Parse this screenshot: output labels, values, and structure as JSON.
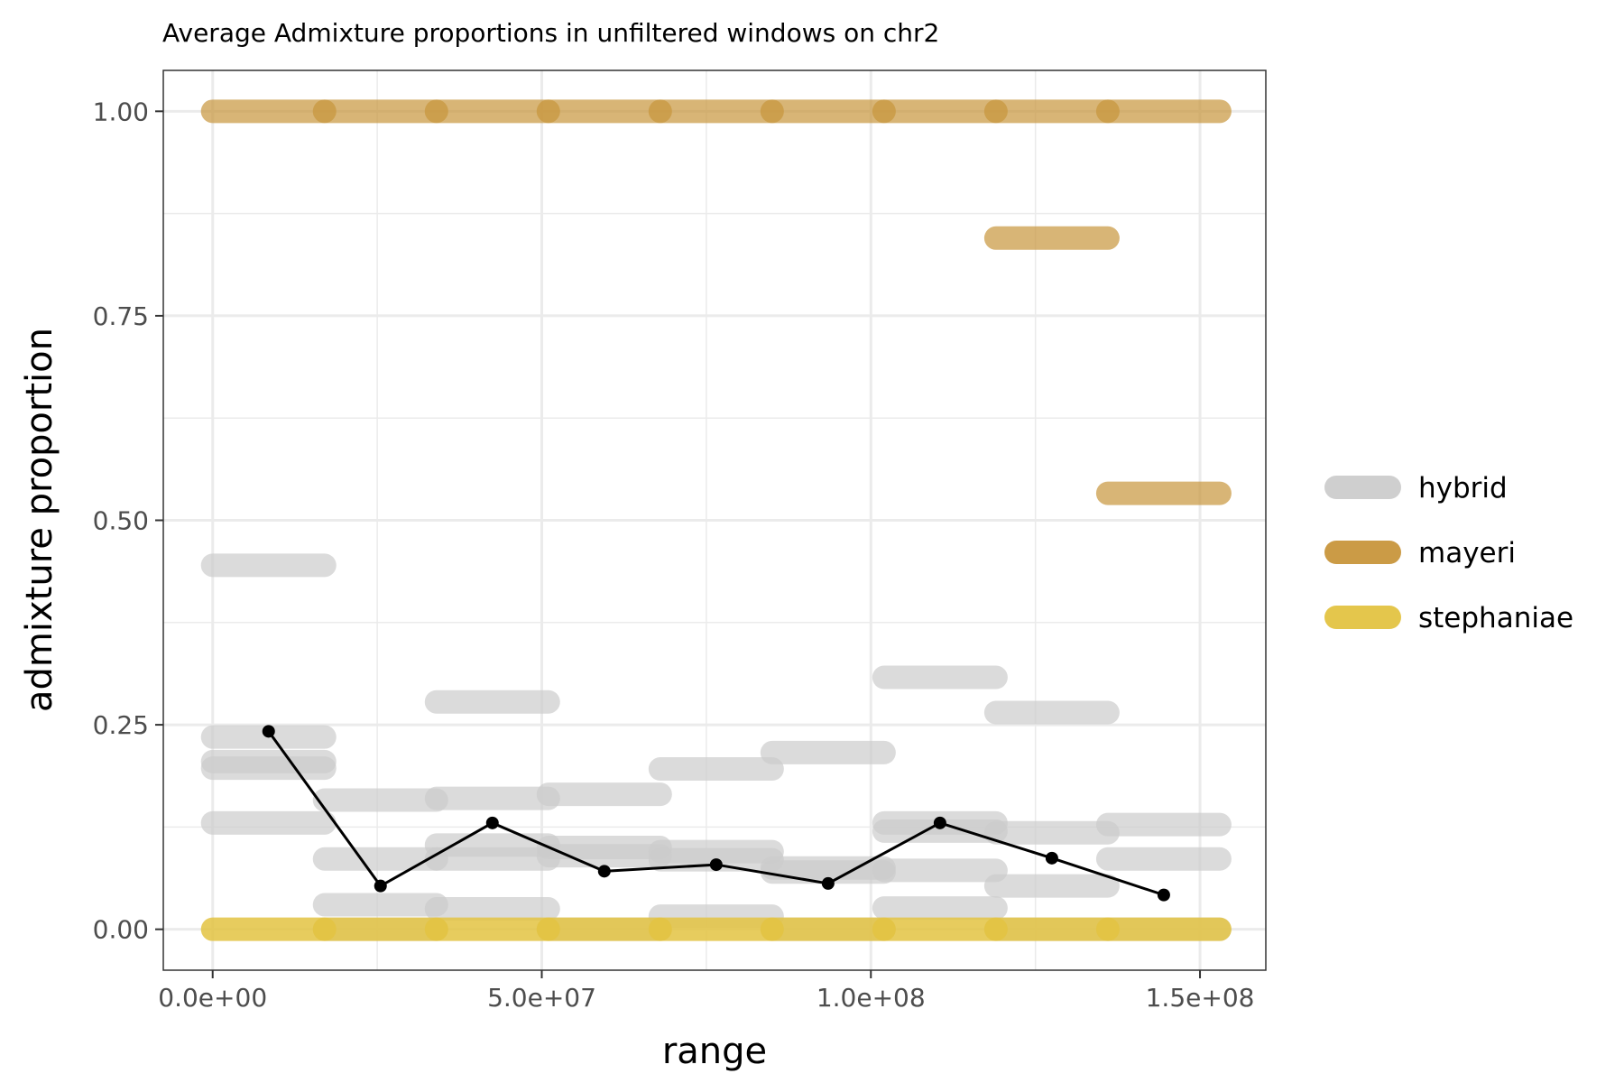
{
  "chart_data": {
    "type": "line",
    "title": "Average Admixture proportions in unfiltered windows on chr2",
    "xlabel": "range",
    "ylabel": "admixture proportion",
    "xlim": [
      -7500000,
      160000000
    ],
    "ylim": [
      -0.05,
      1.05
    ],
    "x_ticks": [
      {
        "value": 0,
        "label": "0.0e+00"
      },
      {
        "value": 50000000,
        "label": "5.0e+07"
      },
      {
        "value": 100000000,
        "label": "1.0e+08"
      },
      {
        "value": 150000000,
        "label": "1.5e+08"
      }
    ],
    "y_ticks": [
      {
        "value": 0,
        "label": "0.00"
      },
      {
        "value": 0.25,
        "label": "0.25"
      },
      {
        "value": 0.5,
        "label": "0.50"
      },
      {
        "value": 0.75,
        "label": "0.75"
      },
      {
        "value": 1.0,
        "label": "1.00"
      }
    ],
    "grid": true,
    "legend_position": "right",
    "legend": [
      {
        "name": "hybrid",
        "color": "#cccccc"
      },
      {
        "name": "mayeri",
        "color": "#c8963c"
      },
      {
        "name": "stephaniae",
        "color": "#e3c342"
      }
    ],
    "segments": {
      "hybrid": [
        {
          "x0": 0,
          "x1": 17000000,
          "y": 0.445
        },
        {
          "x0": 0,
          "x1": 17000000,
          "y": 0.235
        },
        {
          "x0": 0,
          "x1": 17000000,
          "y": 0.205
        },
        {
          "x0": 0,
          "x1": 17000000,
          "y": 0.197
        },
        {
          "x0": 0,
          "x1": 17000000,
          "y": 0.13
        },
        {
          "x0": 17000000,
          "x1": 34000000,
          "y": 0.158
        },
        {
          "x0": 17000000,
          "x1": 34000000,
          "y": 0.086
        },
        {
          "x0": 17000000,
          "x1": 34000000,
          "y": 0.03
        },
        {
          "x0": 17000000,
          "x1": 34000000,
          "y": 0.0
        },
        {
          "x0": 34000000,
          "x1": 51000000,
          "y": 0.278
        },
        {
          "x0": 34000000,
          "x1": 51000000,
          "y": 0.16
        },
        {
          "x0": 34000000,
          "x1": 51000000,
          "y": 0.103
        },
        {
          "x0": 34000000,
          "x1": 51000000,
          "y": 0.086
        },
        {
          "x0": 34000000,
          "x1": 51000000,
          "y": 0.025
        },
        {
          "x0": 51000000,
          "x1": 68000000,
          "y": 0.165
        },
        {
          "x0": 51000000,
          "x1": 68000000,
          "y": 0.1
        },
        {
          "x0": 51000000,
          "x1": 68000000,
          "y": 0.09
        },
        {
          "x0": 51000000,
          "x1": 68000000,
          "y": 0.0
        },
        {
          "x0": 68000000,
          "x1": 85000000,
          "y": 0.196
        },
        {
          "x0": 68000000,
          "x1": 85000000,
          "y": 0.095
        },
        {
          "x0": 68000000,
          "x1": 85000000,
          "y": 0.085
        },
        {
          "x0": 68000000,
          "x1": 85000000,
          "y": 0.016
        },
        {
          "x0": 85000000,
          "x1": 102000000,
          "y": 0.216
        },
        {
          "x0": 85000000,
          "x1": 102000000,
          "y": 0.075
        },
        {
          "x0": 85000000,
          "x1": 102000000,
          "y": 0.07
        },
        {
          "x0": 85000000,
          "x1": 102000000,
          "y": 0.0
        },
        {
          "x0": 102000000,
          "x1": 119000000,
          "y": 0.308
        },
        {
          "x0": 102000000,
          "x1": 119000000,
          "y": 0.13
        },
        {
          "x0": 102000000,
          "x1": 119000000,
          "y": 0.12
        },
        {
          "x0": 102000000,
          "x1": 119000000,
          "y": 0.072
        },
        {
          "x0": 102000000,
          "x1": 119000000,
          "y": 0.026
        },
        {
          "x0": 119000000,
          "x1": 136000000,
          "y": 0.265
        },
        {
          "x0": 119000000,
          "x1": 136000000,
          "y": 0.118
        },
        {
          "x0": 119000000,
          "x1": 136000000,
          "y": 0.053
        },
        {
          "x0": 119000000,
          "x1": 136000000,
          "y": 0.0
        },
        {
          "x0": 136000000,
          "x1": 153000000,
          "y": 0.128
        },
        {
          "x0": 136000000,
          "x1": 153000000,
          "y": 0.086
        },
        {
          "x0": 136000000,
          "x1": 153000000,
          "y": 0.0
        }
      ],
      "mayeri": [
        {
          "x0": 0,
          "x1": 17000000,
          "y": 1.0
        },
        {
          "x0": 17000000,
          "x1": 34000000,
          "y": 1.0
        },
        {
          "x0": 34000000,
          "x1": 51000000,
          "y": 1.0
        },
        {
          "x0": 51000000,
          "x1": 68000000,
          "y": 1.0
        },
        {
          "x0": 68000000,
          "x1": 85000000,
          "y": 1.0
        },
        {
          "x0": 85000000,
          "x1": 102000000,
          "y": 1.0
        },
        {
          "x0": 102000000,
          "x1": 119000000,
          "y": 1.0
        },
        {
          "x0": 119000000,
          "x1": 136000000,
          "y": 1.0
        },
        {
          "x0": 136000000,
          "x1": 153000000,
          "y": 1.0
        },
        {
          "x0": 119000000,
          "x1": 136000000,
          "y": 0.845
        },
        {
          "x0": 136000000,
          "x1": 153000000,
          "y": 0.533
        }
      ],
      "stephaniae": [
        {
          "x0": 0,
          "x1": 17000000,
          "y": 0.0
        },
        {
          "x0": 17000000,
          "x1": 34000000,
          "y": 0.0
        },
        {
          "x0": 34000000,
          "x1": 51000000,
          "y": 0.0
        },
        {
          "x0": 51000000,
          "x1": 68000000,
          "y": 0.0
        },
        {
          "x0": 68000000,
          "x1": 85000000,
          "y": 0.0
        },
        {
          "x0": 85000000,
          "x1": 102000000,
          "y": 0.0
        },
        {
          "x0": 102000000,
          "x1": 119000000,
          "y": 0.0
        },
        {
          "x0": 119000000,
          "x1": 136000000,
          "y": 0.0
        },
        {
          "x0": 136000000,
          "x1": 153000000,
          "y": 0.0
        }
      ]
    },
    "mean_line": {
      "color": "#000000",
      "points": [
        {
          "x": 8500000,
          "y": 0.242
        },
        {
          "x": 25500000,
          "y": 0.053
        },
        {
          "x": 42500000,
          "y": 0.13
        },
        {
          "x": 59500000,
          "y": 0.071
        },
        {
          "x": 76500000,
          "y": 0.079
        },
        {
          "x": 93500000,
          "y": 0.056
        },
        {
          "x": 110500000,
          "y": 0.13
        },
        {
          "x": 127500000,
          "y": 0.087
        },
        {
          "x": 144500000,
          "y": 0.042
        }
      ]
    }
  }
}
